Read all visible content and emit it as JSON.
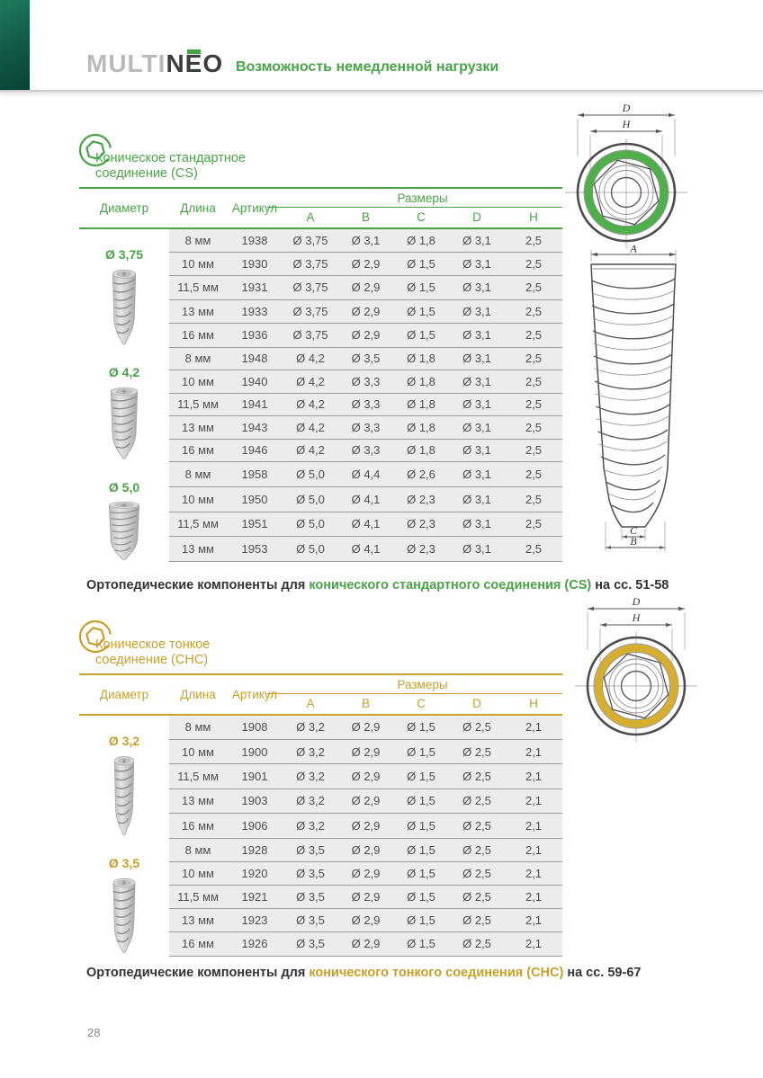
{
  "brand": {
    "name_left": "MULTI",
    "name_right": "NEO",
    "tagline": "Возможность немедленной нагрузки"
  },
  "dims": {
    "d": "D",
    "h": "H",
    "a": "A",
    "b": "B",
    "c": "C"
  },
  "page_number": "28",
  "sections": [
    {
      "id": "cs",
      "accent": "#48a446",
      "ring": "#4fb04b",
      "title_line1": "Коническое стандартное",
      "title_line2": "соединение (CS)",
      "table": {
        "col_diameter": "Диаметр",
        "col_length": "Длина",
        "col_article": "Артикул",
        "col_sizes": "Размеры",
        "size_cols": [
          "A",
          "B",
          "C",
          "D",
          "H"
        ],
        "groups": [
          {
            "diameter": "Ø 3,75",
            "rows": [
              {
                "length": "8 мм",
                "article": "1938",
                "a": "Ø 3,75",
                "b": "Ø 3,1",
                "c": "Ø 1,8",
                "d": "Ø 3,1",
                "h": "2,5"
              },
              {
                "length": "10 мм",
                "article": "1930",
                "a": "Ø 3,75",
                "b": "Ø 2,9",
                "c": "Ø 1,5",
                "d": "Ø 3,1",
                "h": "2,5"
              },
              {
                "length": "11,5 мм",
                "article": "1931",
                "a": "Ø 3,75",
                "b": "Ø 2,9",
                "c": "Ø 1,5",
                "d": "Ø 3,1",
                "h": "2,5"
              },
              {
                "length": "13 мм",
                "article": "1933",
                "a": "Ø 3,75",
                "b": "Ø 2,9",
                "c": "Ø 1,5",
                "d": "Ø 3,1",
                "h": "2,5"
              },
              {
                "length": "16 мм",
                "article": "1936",
                "a": "Ø 3,75",
                "b": "Ø 2,9",
                "c": "Ø 1,5",
                "d": "Ø 3,1",
                "h": "2,5"
              }
            ]
          },
          {
            "diameter": "Ø 4,2",
            "rows": [
              {
                "length": "8 мм",
                "article": "1948",
                "a": "Ø 4,2",
                "b": "Ø 3,5",
                "c": "Ø 1,8",
                "d": "Ø 3,1",
                "h": "2,5"
              },
              {
                "length": "10 мм",
                "article": "1940",
                "a": "Ø 4,2",
                "b": "Ø 3,3",
                "c": "Ø 1,8",
                "d": "Ø 3,1",
                "h": "2,5"
              },
              {
                "length": "11,5 мм",
                "article": "1941",
                "a": "Ø 4,2",
                "b": "Ø 3,3",
                "c": "Ø 1,8",
                "d": "Ø 3,1",
                "h": "2,5"
              },
              {
                "length": "13 мм",
                "article": "1943",
                "a": "Ø 4,2",
                "b": "Ø 3,3",
                "c": "Ø 1,8",
                "d": "Ø 3,1",
                "h": "2,5"
              },
              {
                "length": "16 мм",
                "article": "1946",
                "a": "Ø 4,2",
                "b": "Ø 3,3",
                "c": "Ø 1,8",
                "d": "Ø 3,1",
                "h": "2,5"
              }
            ]
          },
          {
            "diameter": "Ø 5,0",
            "rows": [
              {
                "length": "8 мм",
                "article": "1958",
                "a": "Ø 5,0",
                "b": "Ø 4,4",
                "c": "Ø 2,6",
                "d": "Ø 3,1",
                "h": "2,5"
              },
              {
                "length": "10 мм",
                "article": "1950",
                "a": "Ø 5,0",
                "b": "Ø 4,1",
                "c": "Ø 2,3",
                "d": "Ø 3,1",
                "h": "2,5"
              },
              {
                "length": "11,5 мм",
                "article": "1951",
                "a": "Ø 5,0",
                "b": "Ø 4,1",
                "c": "Ø 2,3",
                "d": "Ø 3,1",
                "h": "2,5"
              },
              {
                "length": "13 мм",
                "article": "1953",
                "a": "Ø 5,0",
                "b": "Ø 4,1",
                "c": "Ø 2,3",
                "d": "Ø 3,1",
                "h": "2,5"
              }
            ]
          }
        ]
      },
      "note": {
        "prefix": "Ортопедические компоненты для ",
        "highlight": "конического стандартного соединения (CS)",
        "suffix": " на сс. 51-58"
      }
    },
    {
      "id": "chc",
      "accent": "#c7a029",
      "ring": "#d6af2e",
      "title_line1": "Коническое тонкое",
      "title_line2": "соединение (CHC)",
      "table": {
        "col_diameter": "Диаметр",
        "col_length": "Длина",
        "col_article": "Артикул",
        "col_sizes": "Размеры",
        "size_cols": [
          "A",
          "B",
          "C",
          "D",
          "H"
        ],
        "groups": [
          {
            "diameter": "Ø 3,2",
            "rows": [
              {
                "length": "8 мм",
                "article": "1908",
                "a": "Ø 3,2",
                "b": "Ø 2,9",
                "c": "Ø 1,5",
                "d": "Ø 2,5",
                "h": "2,1"
              },
              {
                "length": "10 мм",
                "article": "1900",
                "a": "Ø 3,2",
                "b": "Ø 2,9",
                "c": "Ø 1,5",
                "d": "Ø 2,5",
                "h": "2,1"
              },
              {
                "length": "11,5 мм",
                "article": "1901",
                "a": "Ø 3,2",
                "b": "Ø 2,9",
                "c": "Ø 1,5",
                "d": "Ø 2,5",
                "h": "2,1"
              },
              {
                "length": "13 мм",
                "article": "1903",
                "a": "Ø 3,2",
                "b": "Ø 2,9",
                "c": "Ø 1,5",
                "d": "Ø 2,5",
                "h": "2,1"
              },
              {
                "length": "16 мм",
                "article": "1906",
                "a": "Ø 3,2",
                "b": "Ø 2,9",
                "c": "Ø 1,5",
                "d": "Ø 2,5",
                "h": "2,1"
              }
            ]
          },
          {
            "diameter": "Ø 3,5",
            "rows": [
              {
                "length": "8 мм",
                "article": "1928",
                "a": "Ø 3,5",
                "b": "Ø 2,9",
                "c": "Ø 1,5",
                "d": "Ø 2,5",
                "h": "2,1"
              },
              {
                "length": "10 мм",
                "article": "1920",
                "a": "Ø 3,5",
                "b": "Ø 2,9",
                "c": "Ø 1,5",
                "d": "Ø 2,5",
                "h": "2,1"
              },
              {
                "length": "11,5 мм",
                "article": "1921",
                "a": "Ø 3,5",
                "b": "Ø 2,9",
                "c": "Ø 1,5",
                "d": "Ø 2,5",
                "h": "2,1"
              },
              {
                "length": "13 мм",
                "article": "1923",
                "a": "Ø 3,5",
                "b": "Ø 2,9",
                "c": "Ø 1,5",
                "d": "Ø 2,5",
                "h": "2,1"
              },
              {
                "length": "16 мм",
                "article": "1926",
                "a": "Ø 3,5",
                "b": "Ø 2,9",
                "c": "Ø 1,5",
                "d": "Ø 2,5",
                "h": "2,1"
              }
            ]
          }
        ]
      },
      "note": {
        "prefix": "Ортопедические компоненты для ",
        "highlight": "конического тонкого соединения (CHC)",
        "suffix": " на сс. 59-67"
      }
    }
  ]
}
